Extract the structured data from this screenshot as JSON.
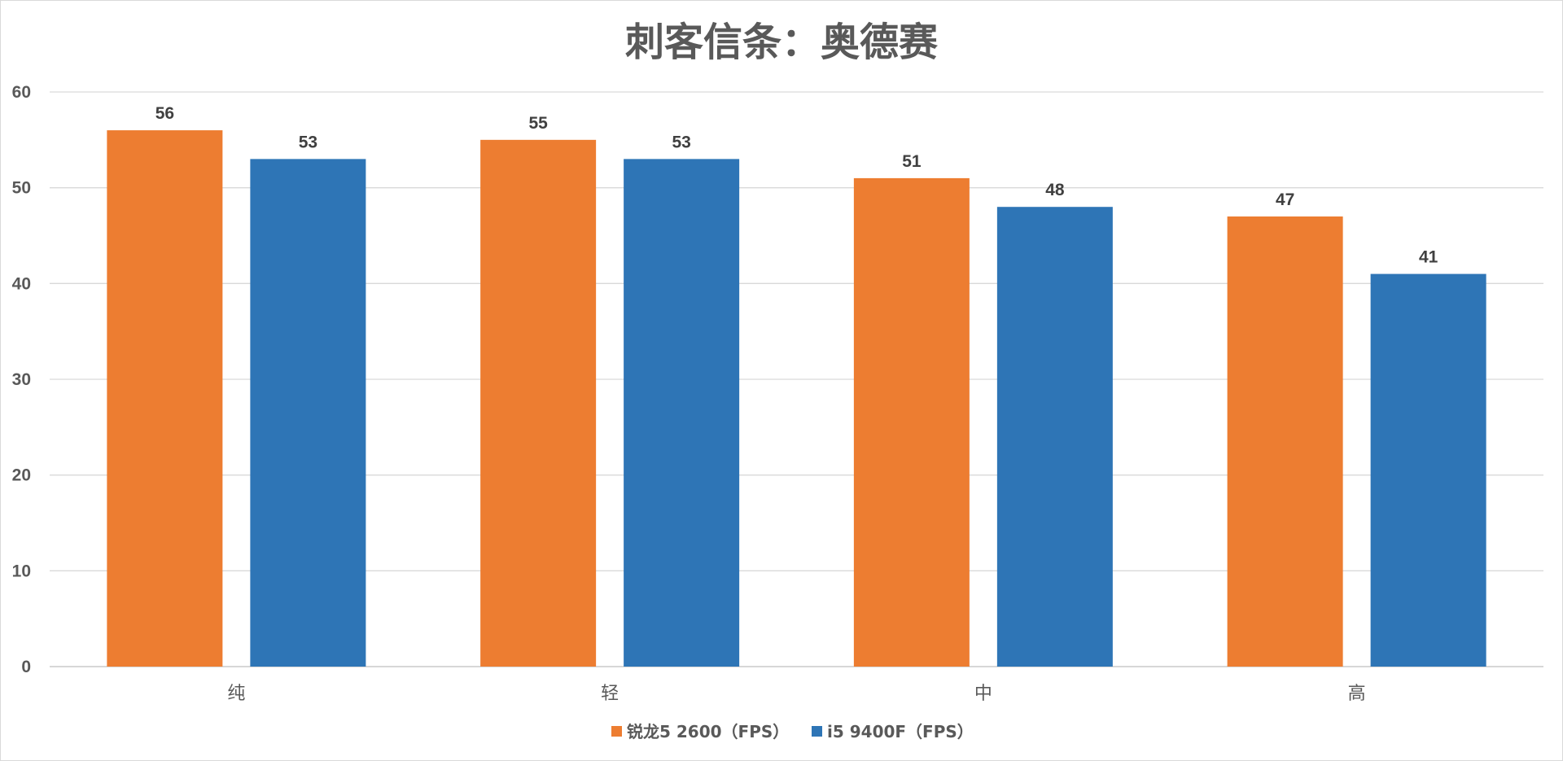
{
  "chart_data": {
    "type": "bar",
    "title": "刺客信条：奥德赛",
    "categories": [
      "纯",
      "轻",
      "中",
      "高"
    ],
    "series": [
      {
        "name": "锐龙5 2600（FPS）",
        "color": "#ED7D31",
        "values": [
          56,
          55,
          51,
          47
        ]
      },
      {
        "name": "i5 9400F（FPS）",
        "color": "#2E75B6",
        "values": [
          53,
          53,
          48,
          41
        ]
      }
    ],
    "ylim": [
      0,
      60
    ],
    "yticks": [
      0,
      10,
      20,
      30,
      40,
      50,
      60
    ],
    "grid": true,
    "legend": "bottom"
  }
}
